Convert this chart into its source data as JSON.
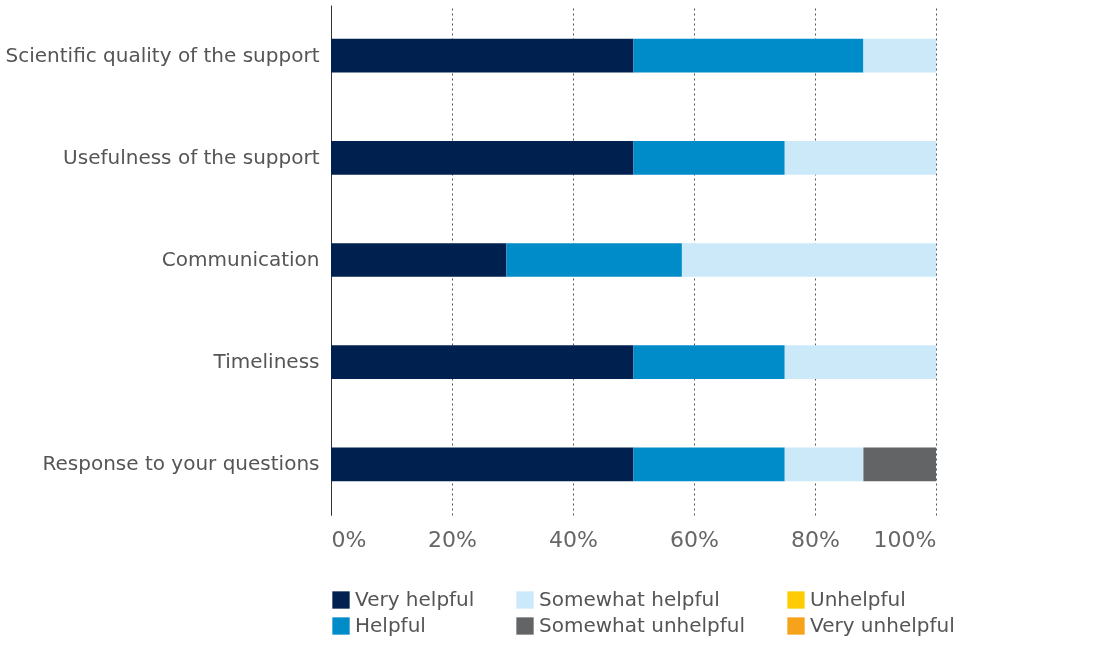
{
  "chart_data": {
    "type": "bar",
    "orientation": "horizontal",
    "stacked": true,
    "categories": [
      "Scientific quality of the support",
      "Usefulness of the support",
      "Communication",
      "Timeliness",
      "Response to your questions"
    ],
    "series": [
      {
        "name": "Very helpful",
        "color": "#00214f",
        "values": [
          50,
          50,
          29,
          50,
          50
        ]
      },
      {
        "name": "Helpful",
        "color": "#008bc9",
        "values": [
          38,
          25,
          29,
          25,
          25
        ]
      },
      {
        "name": "Somewhat helpful",
        "color": "#cbe9f9",
        "values": [
          12,
          25,
          42,
          25,
          13
        ]
      },
      {
        "name": "Somewhat unhelpful",
        "color": "#636466",
        "values": [
          0,
          0,
          0,
          0,
          12
        ]
      },
      {
        "name": "Unhelpful",
        "color": "#ffcb05",
        "values": [
          0,
          0,
          0,
          0,
          0
        ]
      },
      {
        "name": "Very unhelpful",
        "color": "#f7a21b",
        "values": [
          0,
          0,
          0,
          0,
          0
        ]
      }
    ],
    "xlim": [
      0,
      100
    ],
    "xticks": [
      {
        "value": 0,
        "label": "0%"
      },
      {
        "value": 20,
        "label": "20%"
      },
      {
        "value": 40,
        "label": "40%"
      },
      {
        "value": 60,
        "label": "60%"
      },
      {
        "value": 80,
        "label": "80%"
      },
      {
        "value": 100,
        "label": "100%"
      }
    ],
    "grid": "x",
    "legend": "bottom"
  }
}
